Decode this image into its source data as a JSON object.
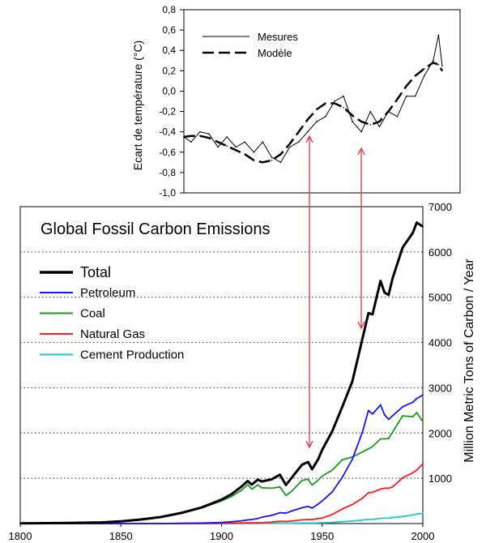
{
  "colors": {
    "total": "#000000",
    "petroleum": "#1414ff",
    "coal": "#1a9a1a",
    "natural_gas": "#ff1a1a",
    "cement": "#1ec8c8",
    "arrows": "#e8323c",
    "gridlines": "#555555"
  },
  "chart_data": [
    {
      "type": "line",
      "title": "",
      "xlabel": "",
      "ylabel": "Ecart de température (°C)",
      "ylim": [
        -1.0,
        0.8
      ],
      "yticks": [
        "0,8",
        "0,6",
        "0,4",
        "0,2",
        "0,0",
        "-0,2",
        "-0,4",
        "-0,6",
        "-0,8",
        "-1,0"
      ],
      "legend_position": "top-left",
      "grid": false,
      "x": [
        1856,
        1860,
        1865,
        1870,
        1875,
        1880,
        1885,
        1890,
        1895,
        1900,
        1905,
        1910,
        1915,
        1920,
        1925,
        1930,
        1935,
        1940,
        1945,
        1950,
        1955,
        1960,
        1965,
        1970,
        1975,
        1980,
        1985,
        1990,
        1995,
        1998,
        2000
      ],
      "series": [
        {
          "name": "Mesures",
          "style": "solid",
          "values": [
            -0.45,
            -0.5,
            -0.4,
            -0.42,
            -0.55,
            -0.45,
            -0.55,
            -0.5,
            -0.6,
            -0.5,
            -0.65,
            -0.7,
            -0.55,
            -0.5,
            -0.4,
            -0.3,
            -0.25,
            -0.1,
            -0.05,
            -0.3,
            -0.4,
            -0.2,
            -0.35,
            -0.2,
            -0.25,
            -0.05,
            -0.05,
            0.15,
            0.3,
            0.55,
            0.25
          ]
        },
        {
          "name": "Modèle",
          "style": "dashed",
          "values": [
            -0.45,
            -0.44,
            -0.44,
            -0.46,
            -0.5,
            -0.54,
            -0.58,
            -0.62,
            -0.68,
            -0.7,
            -0.68,
            -0.62,
            -0.52,
            -0.4,
            -0.28,
            -0.18,
            -0.12,
            -0.12,
            -0.16,
            -0.24,
            -0.3,
            -0.33,
            -0.3,
            -0.2,
            -0.08,
            0.05,
            0.15,
            0.22,
            0.28,
            0.26,
            0.2
          ]
        }
      ]
    },
    {
      "type": "line",
      "title": "Global Fossil Carbon Emissions",
      "xlabel": "",
      "ylabel": "Million Metric Tons of Carbon / Year",
      "xlim": [
        1800,
        2000
      ],
      "ylim": [
        0,
        7000
      ],
      "xticks": [
        1800,
        1850,
        1900,
        1950,
        2000
      ],
      "yticks": [
        1000,
        2000,
        3000,
        4000,
        5000,
        6000,
        7000
      ],
      "grid": true,
      "legend_position": "top-left",
      "x": [
        1800,
        1820,
        1840,
        1850,
        1860,
        1870,
        1880,
        1890,
        1900,
        1905,
        1910,
        1913,
        1915,
        1918,
        1920,
        1925,
        1929,
        1932,
        1935,
        1940,
        1943,
        1945,
        1948,
        1950,
        1955,
        1960,
        1965,
        1970,
        1973,
        1975,
        1979,
        1981,
        1983,
        1985,
        1990,
        1995,
        1997,
        2000
      ],
      "series": [
        {
          "name": "Total",
          "values": [
            5,
            10,
            25,
            50,
            90,
            145,
            235,
            355,
            530,
            650,
            820,
            940,
            860,
            970,
            930,
            980,
            1080,
            850,
            1020,
            1300,
            1360,
            1200,
            1420,
            1630,
            2040,
            2580,
            3140,
            4080,
            4650,
            4620,
            5360,
            5100,
            5050,
            5420,
            6100,
            6420,
            6650,
            6560
          ]
        },
        {
          "name": "Petroleum",
          "values": [
            0,
            0,
            0,
            0,
            0,
            0,
            5,
            10,
            25,
            40,
            60,
            80,
            90,
            110,
            140,
            180,
            240,
            230,
            280,
            350,
            380,
            340,
            430,
            500,
            700,
            1020,
            1420,
            2020,
            2500,
            2420,
            2620,
            2400,
            2300,
            2380,
            2580,
            2680,
            2760,
            2840
          ]
        },
        {
          "name": "Coal",
          "values": [
            5,
            10,
            25,
            50,
            90,
            145,
            225,
            340,
            500,
            600,
            740,
            860,
            760,
            850,
            790,
            780,
            810,
            620,
            720,
            950,
            980,
            850,
            960,
            1050,
            1180,
            1410,
            1470,
            1580,
            1650,
            1700,
            1870,
            1870,
            1880,
            2020,
            2380,
            2360,
            2450,
            2250
          ]
        },
        {
          "name": "Natural Gas",
          "values": [
            0,
            0,
            0,
            0,
            0,
            0,
            0,
            0,
            5,
            8,
            12,
            15,
            15,
            18,
            20,
            30,
            50,
            45,
            55,
            80,
            90,
            90,
            110,
            120,
            200,
            320,
            420,
            560,
            680,
            690,
            760,
            780,
            780,
            810,
            1010,
            1120,
            1180,
            1320
          ]
        },
        {
          "name": "Cement Production",
          "values": [
            0,
            0,
            0,
            0,
            0,
            0,
            0,
            0,
            0,
            0,
            0,
            2,
            3,
            3,
            3,
            5,
            8,
            7,
            9,
            12,
            13,
            12,
            15,
            18,
            25,
            42,
            55,
            78,
            90,
            92,
            115,
            118,
            120,
            130,
            155,
            190,
            210,
            225
          ]
        }
      ]
    }
  ]
}
